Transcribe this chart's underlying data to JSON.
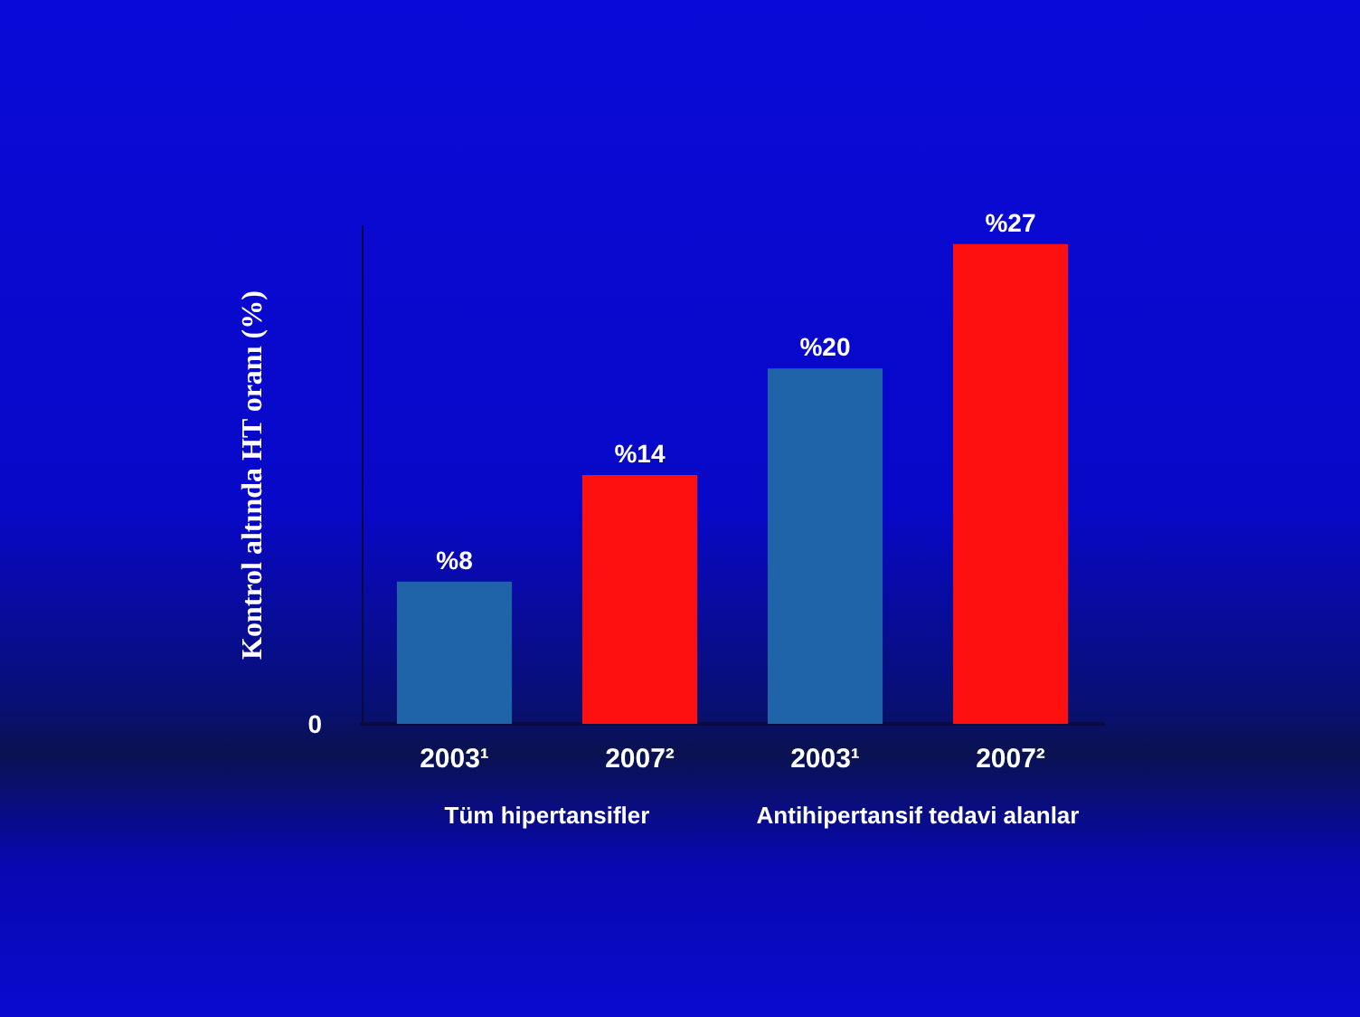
{
  "chart_data": {
    "type": "bar",
    "ylabel": "Kontrol altında HT oranı (%)",
    "categories": [
      "2003¹",
      "2007²",
      "2003¹",
      "2007²"
    ],
    "values": [
      8,
      14,
      20,
      27
    ],
    "colors": [
      "#1f64a8",
      "#ff1010",
      "#1f64a8",
      "#ff1010"
    ],
    "value_labels": [
      "%8",
      "%14",
      "%20",
      "%27"
    ],
    "ylim": [
      0,
      28
    ],
    "annotations": [
      "Tüm hipertansifler",
      "Antihipertansif tedavi alanlar",
      "0"
    ]
  }
}
